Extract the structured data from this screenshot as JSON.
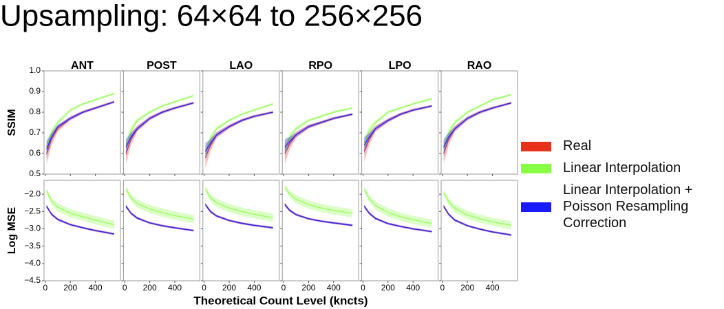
{
  "chart_data": {
    "type": "line",
    "title": "Upsampling: 64×64 to 256×256",
    "xlabel": "Theoretical Count Level (kncts)",
    "x": [
      10,
      50,
      100,
      200,
      300,
      400,
      550
    ],
    "xlim": [
      -10,
      600
    ],
    "xticks": [
      0,
      200,
      400
    ],
    "panel_titles": [
      "ANT",
      "POST",
      "LAO",
      "RPO",
      "LPO",
      "RAO"
    ],
    "series": [
      {
        "name": "Real",
        "color": "#e8301a"
      },
      {
        "name": "Linear Interpolation",
        "color": "#88ff44"
      },
      {
        "name": "Linear Interpolation + Poisson Resampling Correction",
        "color": "#1a1aff"
      }
    ],
    "rows": [
      {
        "ylabel": "SSIM",
        "ylim": [
          0.5,
          1.0
        ],
        "yticks": [
          0.5,
          0.6,
          0.7,
          0.8,
          0.9,
          {
            "value": 1,
            "label": "1.0"
          }
        ],
        "errors": [
          [
            0.05,
            0.03,
            0.015,
            0.01,
            0.008,
            0.007,
            0.006
          ],
          [
            0.03,
            0.02,
            0.01,
            0.007,
            0.006,
            0.006,
            0.006
          ],
          [
            0.04,
            0.02,
            0.01,
            0.007,
            0.006,
            0.005,
            0.005
          ]
        ],
        "panels": [
          {
            "series": [
              {
                "values": [
                  0.6,
                  0.67,
                  0.72,
                  0.77,
                  0.8,
                  0.82,
                  0.85
                ]
              },
              {
                "values": [
                  0.63,
                  0.7,
                  0.75,
                  0.81,
                  0.84,
                  0.86,
                  0.89
                ]
              },
              {
                "values": [
                  0.62,
                  0.68,
                  0.73,
                  0.77,
                  0.8,
                  0.82,
                  0.85
                ]
              }
            ]
          },
          {
            "series": [
              {
                "values": [
                  0.6,
                  0.67,
                  0.72,
                  0.77,
                  0.8,
                  0.82,
                  0.845
                ]
              },
              {
                "values": [
                  0.64,
                  0.71,
                  0.76,
                  0.8,
                  0.83,
                  0.85,
                  0.88
                ]
              },
              {
                "values": [
                  0.63,
                  0.68,
                  0.72,
                  0.77,
                  0.8,
                  0.82,
                  0.845
                ]
              }
            ]
          },
          {
            "series": [
              {
                "values": [
                  0.58,
                  0.64,
                  0.69,
                  0.73,
                  0.76,
                  0.78,
                  0.8
                ]
              },
              {
                "values": [
                  0.6,
                  0.67,
                  0.72,
                  0.76,
                  0.79,
                  0.81,
                  0.84
                ]
              },
              {
                "values": [
                  0.61,
                  0.65,
                  0.69,
                  0.73,
                  0.76,
                  0.78,
                  0.8
                ]
              }
            ]
          },
          {
            "series": [
              {
                "values": [
                  0.6,
                  0.65,
                  0.69,
                  0.73,
                  0.75,
                  0.77,
                  0.79
                ]
              },
              {
                "values": [
                  0.62,
                  0.68,
                  0.72,
                  0.76,
                  0.78,
                  0.8,
                  0.82
                ]
              },
              {
                "values": [
                  0.63,
                  0.66,
                  0.69,
                  0.73,
                  0.75,
                  0.77,
                  0.79
                ]
              }
            ]
          },
          {
            "series": [
              {
                "values": [
                  0.61,
                  0.67,
                  0.72,
                  0.76,
                  0.79,
                  0.81,
                  0.83
                ]
              },
              {
                "values": [
                  0.65,
                  0.71,
                  0.75,
                  0.8,
                  0.82,
                  0.84,
                  0.865
                ]
              },
              {
                "values": [
                  0.64,
                  0.68,
                  0.72,
                  0.76,
                  0.79,
                  0.81,
                  0.83
                ]
              }
            ]
          },
          {
            "series": [
              {
                "values": [
                  0.6,
                  0.67,
                  0.72,
                  0.77,
                  0.8,
                  0.82,
                  0.845
                ]
              },
              {
                "values": [
                  0.63,
                  0.7,
                  0.75,
                  0.8,
                  0.83,
                  0.86,
                  0.885
                ]
              },
              {
                "values": [
                  0.63,
                  0.68,
                  0.72,
                  0.77,
                  0.8,
                  0.82,
                  0.845
                ]
              }
            ]
          }
        ]
      },
      {
        "ylabel": "Log MSE",
        "ylim": [
          -4.5,
          -1.6
        ],
        "yticks": [
          {
            "value": -4.5,
            "label": "−4.5"
          },
          {
            "value": -4,
            "label": "−4.0"
          },
          {
            "value": -3.5,
            "label": "−3.5"
          },
          {
            "value": -3,
            "label": "−3.0"
          },
          {
            "value": -2.5,
            "label": "−2.5"
          },
          {
            "value": -2,
            "label": "−2.0"
          }
        ],
        "errors": [
          [
            0.05,
            0.04,
            0.035,
            0.03,
            0.03,
            0.03,
            0.03
          ],
          [
            0.08,
            0.1,
            0.12,
            0.12,
            0.12,
            0.12,
            0.12
          ],
          [
            0.05,
            0.04,
            0.035,
            0.03,
            0.03,
            0.03,
            0.03
          ]
        ],
        "panels": [
          {
            "series": [
              {
                "values": [
                  -2.35,
                  -2.58,
                  -2.73,
                  -2.88,
                  -2.97,
                  -3.05,
                  -3.15
                ]
              },
              {
                "values": [
                  -1.9,
                  -2.2,
                  -2.38,
                  -2.55,
                  -2.65,
                  -2.75,
                  -2.88
                ]
              },
              {
                "values": [
                  -2.35,
                  -2.58,
                  -2.73,
                  -2.88,
                  -2.97,
                  -3.05,
                  -3.15
                ]
              }
            ]
          },
          {
            "series": [
              {
                "values": [
                  -2.35,
                  -2.55,
                  -2.69,
                  -2.83,
                  -2.91,
                  -2.97,
                  -3.05
                ]
              },
              {
                "values": [
                  -1.85,
                  -2.1,
                  -2.27,
                  -2.43,
                  -2.53,
                  -2.62,
                  -2.72
                ]
              },
              {
                "values": [
                  -2.35,
                  -2.55,
                  -2.69,
                  -2.83,
                  -2.91,
                  -2.97,
                  -3.05
                ]
              }
            ]
          },
          {
            "series": [
              {
                "values": [
                  -2.3,
                  -2.5,
                  -2.63,
                  -2.76,
                  -2.84,
                  -2.9,
                  -2.97
                ]
              },
              {
                "values": [
                  -1.85,
                  -2.1,
                  -2.25,
                  -2.4,
                  -2.5,
                  -2.58,
                  -2.68
                ]
              },
              {
                "values": [
                  -2.3,
                  -2.5,
                  -2.63,
                  -2.76,
                  -2.84,
                  -2.9,
                  -2.97
                ]
              }
            ]
          },
          {
            "series": [
              {
                "values": [
                  -2.3,
                  -2.47,
                  -2.59,
                  -2.71,
                  -2.78,
                  -2.83,
                  -2.9
                ]
              },
              {
                "values": [
                  -1.8,
                  -2.0,
                  -2.15,
                  -2.3,
                  -2.4,
                  -2.47,
                  -2.55
                ]
              },
              {
                "values": [
                  -2.3,
                  -2.47,
                  -2.59,
                  -2.71,
                  -2.78,
                  -2.83,
                  -2.9
                ]
              }
            ]
          },
          {
            "series": [
              {
                "values": [
                  -2.35,
                  -2.55,
                  -2.7,
                  -2.85,
                  -2.93,
                  -3.0,
                  -3.08
                ]
              },
              {
                "values": [
                  -1.85,
                  -2.13,
                  -2.33,
                  -2.53,
                  -2.65,
                  -2.74,
                  -2.85
                ]
              },
              {
                "values": [
                  -2.35,
                  -2.55,
                  -2.7,
                  -2.85,
                  -2.93,
                  -3.0,
                  -3.08
                ]
              }
            ]
          },
          {
            "series": [
              {
                "values": [
                  -2.35,
                  -2.58,
                  -2.75,
                  -2.91,
                  -3.01,
                  -3.09,
                  -3.18
                ]
              },
              {
                "values": [
                  -1.95,
                  -2.22,
                  -2.41,
                  -2.6,
                  -2.71,
                  -2.8,
                  -2.9
                ]
              },
              {
                "values": [
                  -2.35,
                  -2.58,
                  -2.75,
                  -2.91,
                  -3.01,
                  -3.09,
                  -3.18
                ]
              }
            ]
          }
        ]
      }
    ]
  }
}
